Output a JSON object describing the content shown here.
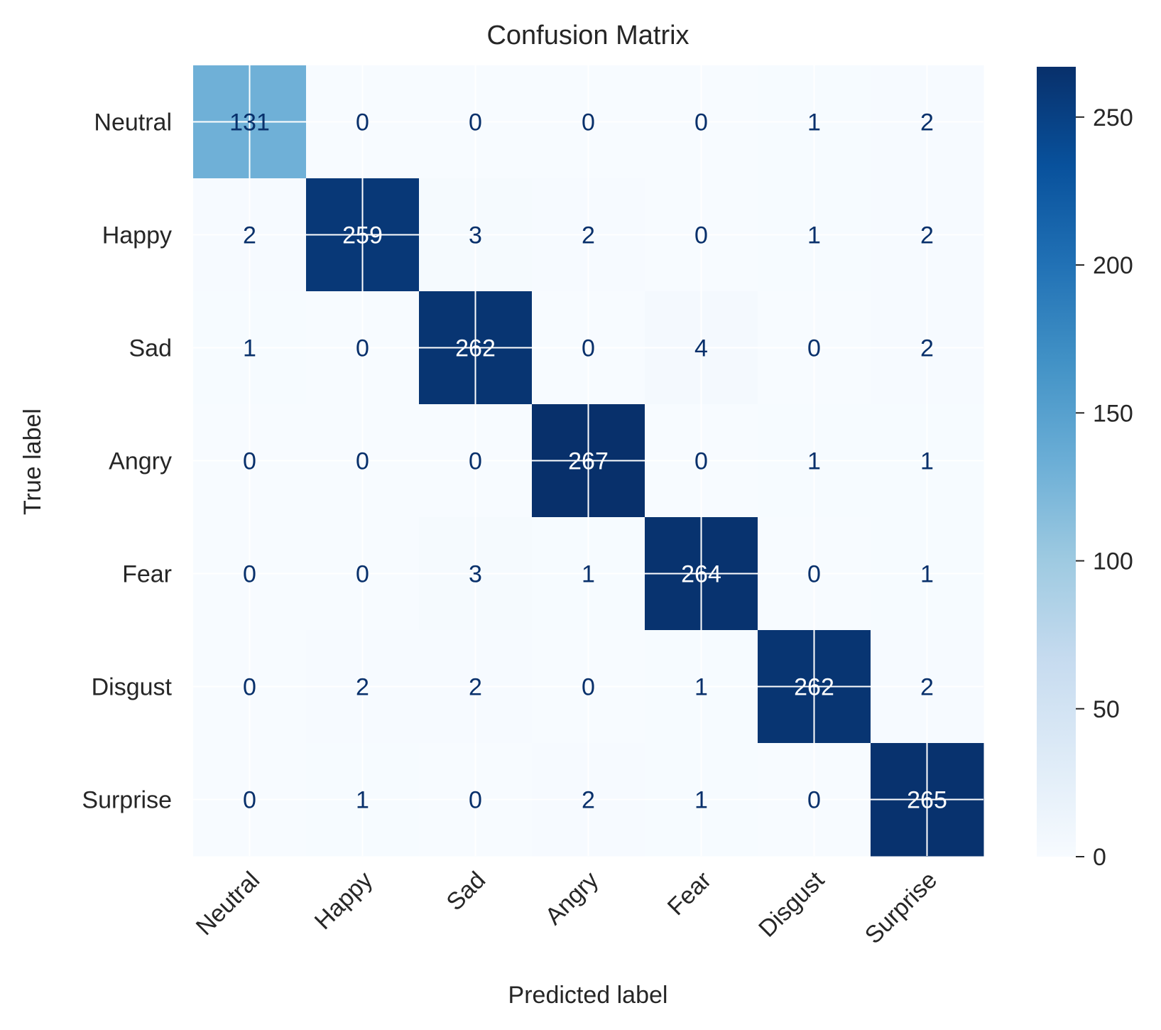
{
  "chart_data": {
    "type": "heatmap",
    "title": "Confusion Matrix",
    "xlabel": "Predicted label",
    "ylabel": "True label",
    "x_categories": [
      "Neutral",
      "Happy",
      "Sad",
      "Angry",
      "Fear",
      "Disgust",
      "Surprise"
    ],
    "y_categories": [
      "Neutral",
      "Happy",
      "Sad",
      "Angry",
      "Fear",
      "Disgust",
      "Surprise"
    ],
    "values": [
      [
        131,
        0,
        0,
        0,
        0,
        1,
        2
      ],
      [
        2,
        259,
        3,
        2,
        0,
        1,
        2
      ],
      [
        1,
        0,
        262,
        0,
        4,
        0,
        2
      ],
      [
        0,
        0,
        0,
        267,
        0,
        1,
        1
      ],
      [
        0,
        0,
        3,
        1,
        264,
        0,
        1
      ],
      [
        0,
        2,
        2,
        0,
        1,
        262,
        2
      ],
      [
        0,
        1,
        0,
        2,
        1,
        0,
        265
      ]
    ],
    "colormap": "Blues",
    "colorbar": {
      "range": [
        0,
        267
      ],
      "ticks": [
        0,
        50,
        100,
        150,
        200,
        250
      ]
    },
    "grid": true
  }
}
